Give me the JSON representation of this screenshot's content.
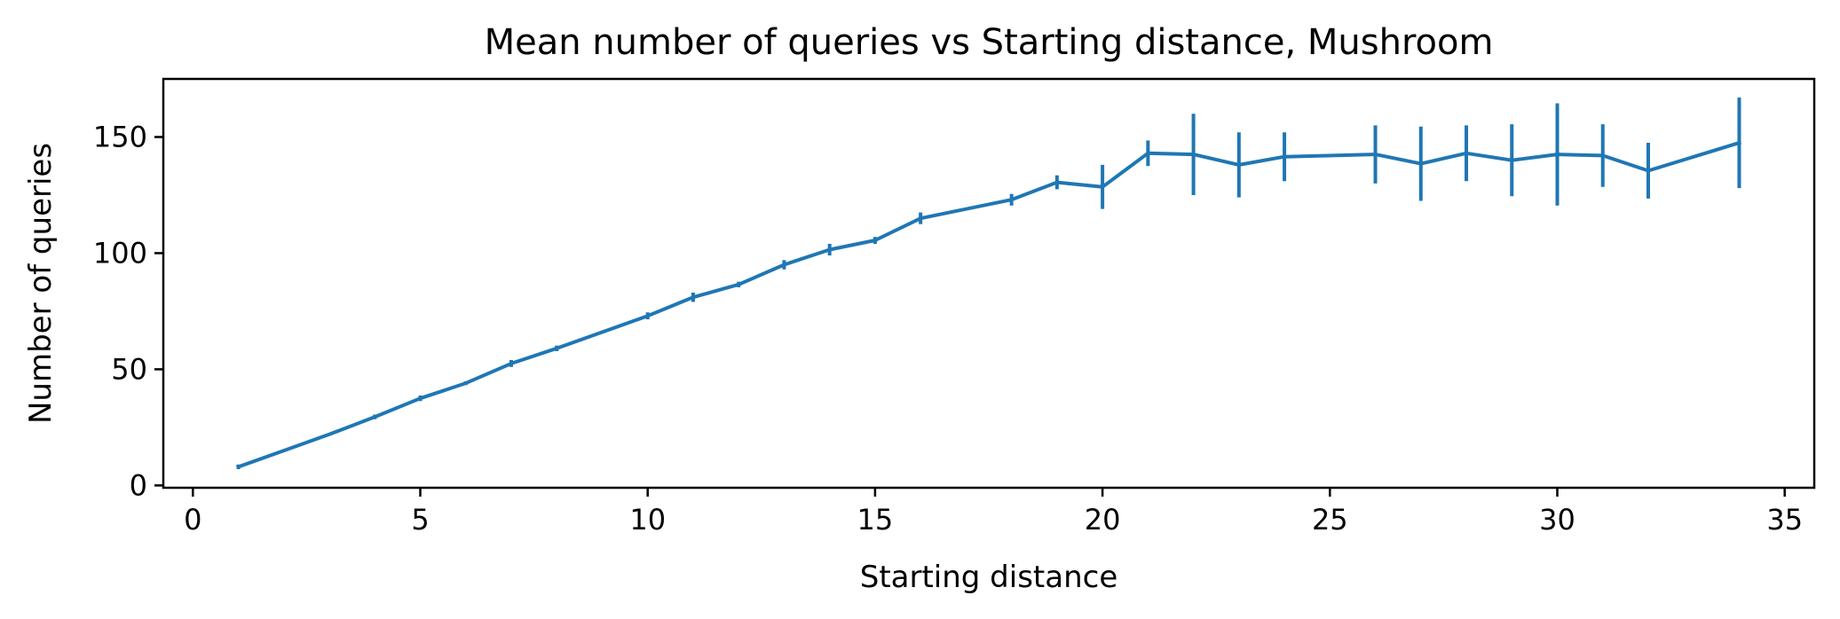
{
  "chart_data": {
    "type": "line",
    "title": "Mean number of queries vs Starting distance, Mushroom",
    "xlabel": "Starting distance",
    "ylabel": "Number of queries",
    "xlim": [
      -0.65,
      35.65
    ],
    "ylim": [
      -1,
      175
    ],
    "xticks": [
      0,
      5,
      10,
      15,
      20,
      25,
      30,
      35
    ],
    "xtick_labels": [
      "0",
      "5",
      "10",
      "15",
      "20",
      "25",
      "30",
      "35"
    ],
    "yticks": [
      0,
      50,
      100,
      150
    ],
    "ytick_labels": [
      "0",
      "50",
      "100",
      "150"
    ],
    "grid": false,
    "legend": "none",
    "color": "#1f77b4",
    "series": [
      {
        "points": [
          {
            "x": 1,
            "y": 8,
            "err": 1
          },
          {
            "x": 2,
            "y": 15,
            "err": 0.5
          },
          {
            "x": 3,
            "y": 22,
            "err": 0.5
          },
          {
            "x": 4,
            "y": 29.5,
            "err": 1
          },
          {
            "x": 5,
            "y": 37.5,
            "err": 1.2
          },
          {
            "x": 6,
            "y": 44,
            "err": 0.8
          },
          {
            "x": 7,
            "y": 52.5,
            "err": 1.5
          },
          {
            "x": 8,
            "y": 59,
            "err": 1.2
          },
          {
            "x": 10,
            "y": 73,
            "err": 1.5
          },
          {
            "x": 11,
            "y": 81,
            "err": 2
          },
          {
            "x": 12,
            "y": 86.5,
            "err": 1.2
          },
          {
            "x": 13,
            "y": 95,
            "err": 2
          },
          {
            "x": 14,
            "y": 101.5,
            "err": 2.5
          },
          {
            "x": 15,
            "y": 105.5,
            "err": 1.5
          },
          {
            "x": 16,
            "y": 115,
            "err": 2.5
          },
          {
            "x": 18,
            "y": 123,
            "err": 2.5
          },
          {
            "x": 19,
            "y": 130.5,
            "err": 3
          },
          {
            "x": 20,
            "y": 128.5,
            "err": 9.5
          },
          {
            "x": 21,
            "y": 143,
            "err": 5.5
          },
          {
            "x": 22,
            "y": 142.5,
            "err": 17.5
          },
          {
            "x": 23,
            "y": 138,
            "err": 14
          },
          {
            "x": 24,
            "y": 141.5,
            "err": 10.5
          },
          {
            "x": 26,
            "y": 142.5,
            "err": 12.5
          },
          {
            "x": 27,
            "y": 138.5,
            "err": 16
          },
          {
            "x": 28,
            "y": 143,
            "err": 12
          },
          {
            "x": 29,
            "y": 140,
            "err": 15.5
          },
          {
            "x": 30,
            "y": 142.5,
            "err": 22
          },
          {
            "x": 31,
            "y": 142,
            "err": 13.5
          },
          {
            "x": 32,
            "y": 135.5,
            "err": 12
          },
          {
            "x": 34,
            "y": 147.5,
            "err": 19.5
          }
        ]
      }
    ]
  }
}
